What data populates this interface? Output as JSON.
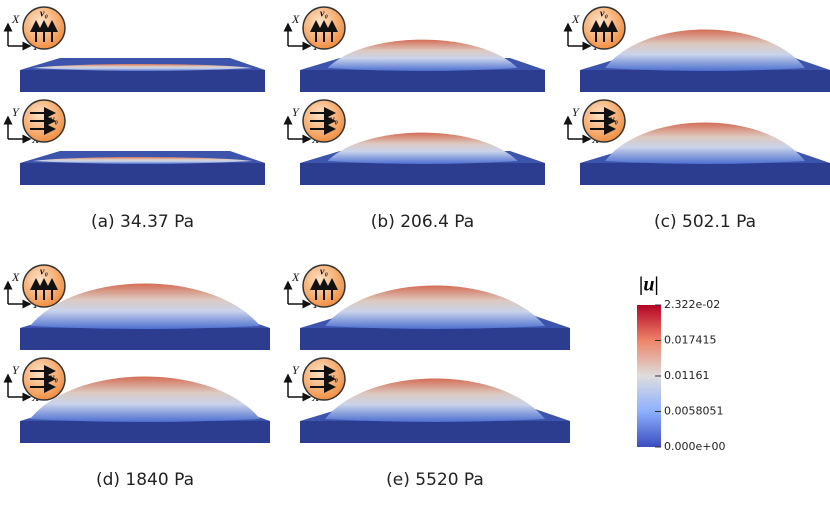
{
  "axis_labels": {
    "x": "X",
    "y": "Y"
  },
  "flow_label": "v₀",
  "panels": [
    {
      "caption": "(a) 34.37 Pa"
    },
    {
      "caption": "(b) 206.4 Pa"
    },
    {
      "caption": "(c) 502.1 Pa"
    },
    {
      "caption": "(d) 1840 Pa"
    },
    {
      "caption": "(e) 5520 Pa"
    }
  ],
  "colorbar": {
    "title": "|u|",
    "ticks": [
      {
        "value": 0.02322,
        "label": "2.322e-02"
      },
      0.017415,
      0.01161,
      0.0058051,
      {
        "value": 0,
        "label": "0.000e+00"
      }
    ]
  }
}
